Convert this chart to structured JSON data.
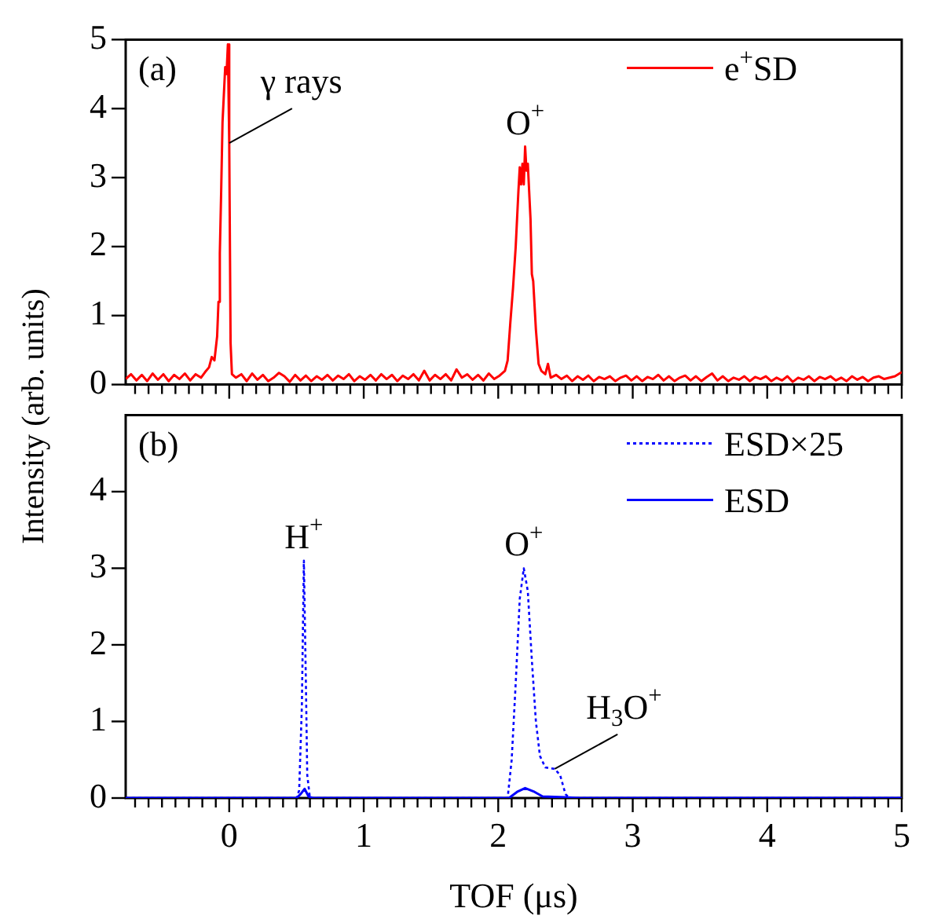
{
  "chart_data": [
    {
      "type": "line",
      "ylabel": "Intensity (arb. units)",
      "xlim": [
        -0.77,
        5
      ],
      "ylim": [
        0,
        5
      ],
      "yticks": [
        0,
        1,
        2,
        3,
        4,
        5
      ],
      "xticks": [
        {
          "value": -0.7,
          "label": null
        },
        {
          "value": -0.6,
          "label": null
        },
        {
          "value": -0.5,
          "label": null
        },
        {
          "value": -0.4,
          "label": null
        },
        {
          "value": -0.3,
          "label": null
        },
        {
          "value": -0.2,
          "label": null
        },
        {
          "value": -0.1,
          "label": null
        },
        0,
        {
          "value": 0.1,
          "label": null
        },
        {
          "value": 0.2,
          "label": null
        },
        {
          "value": 0.3,
          "label": null
        },
        {
          "value": 0.4,
          "label": null
        },
        {
          "value": 0.5,
          "label": null
        },
        {
          "value": 0.6,
          "label": null
        },
        {
          "value": 0.7,
          "label": null
        },
        {
          "value": 0.8,
          "label": null
        },
        {
          "value": 0.9,
          "label": null
        },
        1,
        {
          "value": 1.1,
          "label": null
        },
        {
          "value": 1.2,
          "label": null
        },
        {
          "value": 1.3,
          "label": null
        },
        {
          "value": 1.4,
          "label": null
        },
        {
          "value": 1.5,
          "label": null
        },
        {
          "value": 1.6,
          "label": null
        },
        {
          "value": 1.7,
          "label": null
        },
        {
          "value": 1.8,
          "label": null
        },
        {
          "value": 1.9,
          "label": null
        },
        2,
        {
          "value": 2.1,
          "label": null
        },
        {
          "value": 2.2,
          "label": null
        },
        {
          "value": 2.3,
          "label": null
        },
        {
          "value": 2.4,
          "label": null
        },
        {
          "value": 2.5,
          "label": null
        },
        {
          "value": 2.6,
          "label": null
        },
        {
          "value": 2.7,
          "label": null
        },
        {
          "value": 2.8,
          "label": null
        },
        {
          "value": 2.9,
          "label": null
        },
        3,
        {
          "value": 3.1,
          "label": null
        },
        {
          "value": 3.2,
          "label": null
        },
        {
          "value": 3.3,
          "label": null
        },
        {
          "value": 3.4,
          "label": null
        },
        {
          "value": 3.5,
          "label": null
        },
        {
          "value": 3.6,
          "label": null
        },
        {
          "value": 3.7,
          "label": null
        },
        {
          "value": 3.8,
          "label": null
        },
        {
          "value": 3.9,
          "label": null
        },
        4,
        {
          "value": 4.1,
          "label": null
        },
        {
          "value": 4.2,
          "label": null
        },
        {
          "value": 4.3,
          "label": null
        },
        {
          "value": 4.4,
          "label": null
        },
        {
          "value": 4.5,
          "label": null
        },
        {
          "value": 4.6,
          "label": null
        },
        {
          "value": 4.7,
          "label": null
        },
        {
          "value": 4.8,
          "label": null
        },
        {
          "value": 4.9,
          "label": null
        },
        5
      ],
      "tick_labels": "y",
      "legend": "top right",
      "annotations": [
        "(a)",
        {
          "text": "γ rays",
          "x": 0,
          "y": 3.5
        },
        {
          "text": "O$^{+}$",
          "x": 2.2,
          "y": 3.45
        }
      ],
      "series": [
        {
          "name": "e$^{+}$SD",
          "color": "#ff0000",
          "line_style": "solid",
          "x": [
            -0.77,
            -0.73,
            -0.69,
            -0.65,
            -0.61,
            -0.57,
            -0.53,
            -0.49,
            -0.45,
            -0.41,
            -0.37,
            -0.33,
            -0.29,
            -0.25,
            -0.21,
            -0.18,
            -0.15,
            -0.13,
            -0.11,
            -0.09,
            -0.08,
            -0.07,
            -0.06,
            -0.05,
            -0.04,
            -0.03,
            -0.02,
            -0.01,
            0,
            0.01,
            0.02,
            0.05,
            0.09,
            0.13,
            0.17,
            0.21,
            0.25,
            0.29,
            0.33,
            0.37,
            0.41,
            0.45,
            0.49,
            0.53,
            0.57,
            0.61,
            0.65,
            0.69,
            0.73,
            0.77,
            0.81,
            0.85,
            0.89,
            0.93,
            0.97,
            1.01,
            1.05,
            1.09,
            1.13,
            1.17,
            1.21,
            1.25,
            1.29,
            1.33,
            1.37,
            1.41,
            1.45,
            1.49,
            1.53,
            1.57,
            1.61,
            1.65,
            1.69,
            1.73,
            1.77,
            1.81,
            1.85,
            1.89,
            1.93,
            1.97,
            2.01,
            2.05,
            2.07,
            2.09,
            2.11,
            2.13,
            2.15,
            2.16,
            2.17,
            2.18,
            2.19,
            2.2,
            2.21,
            2.22,
            2.23,
            2.24,
            2.25,
            2.26,
            2.28,
            2.3,
            2.32,
            2.35,
            2.37,
            2.39,
            2.43,
            2.47,
            2.51,
            2.55,
            2.59,
            2.63,
            2.67,
            2.71,
            2.75,
            2.79,
            2.83,
            2.87,
            2.91,
            2.95,
            2.99,
            3.03,
            3.07,
            3.11,
            3.15,
            3.19,
            3.23,
            3.27,
            3.31,
            3.35,
            3.39,
            3.43,
            3.47,
            3.51,
            3.55,
            3.59,
            3.63,
            3.67,
            3.71,
            3.75,
            3.79,
            3.83,
            3.87,
            3.91,
            3.95,
            3.99,
            4.03,
            4.07,
            4.11,
            4.15,
            4.19,
            4.23,
            4.27,
            4.31,
            4.35,
            4.39,
            4.43,
            4.47,
            4.51,
            4.55,
            4.59,
            4.63,
            4.67,
            4.71,
            4.75,
            4.79,
            4.83,
            4.87,
            4.91,
            4.95,
            5
          ],
          "values": [
            0.08,
            0.15,
            0.06,
            0.14,
            0.05,
            0.16,
            0.07,
            0.15,
            0.05,
            0.14,
            0.08,
            0.16,
            0.06,
            0.15,
            0.1,
            0.18,
            0.25,
            0.4,
            0.35,
            0.7,
            1.2,
            1.9,
            2.8,
            3.8,
            4.2,
            4.6,
            4.5,
            4.93,
            3.5,
            0.6,
            0.15,
            0.1,
            0.15,
            0.05,
            0.16,
            0.07,
            0.14,
            0.05,
            0.1,
            0.17,
            0.12,
            0.04,
            0.14,
            0.06,
            0.13,
            0.05,
            0.12,
            0.07,
            0.14,
            0.06,
            0.13,
            0.08,
            0.15,
            0.05,
            0.12,
            0.07,
            0.14,
            0.06,
            0.15,
            0.08,
            0.14,
            0.05,
            0.13,
            0.08,
            0.15,
            0.06,
            0.2,
            0.06,
            0.14,
            0.08,
            0.15,
            0.06,
            0.22,
            0.1,
            0.15,
            0.07,
            0.14,
            0.06,
            0.16,
            0.08,
            0.13,
            0.2,
            0.35,
            0.9,
            1.4,
            2,
            2.8,
            3.15,
            2.9,
            3.2,
            2.9,
            3.45,
            3.1,
            3.2,
            2.8,
            2.4,
            1.6,
            1.5,
            0.8,
            0.3,
            0.2,
            0.15,
            0.3,
            0.1,
            0.14,
            0.08,
            0.13,
            0.05,
            0.12,
            0.07,
            0.13,
            0.05,
            0.11,
            0.08,
            0.12,
            0.05,
            0.1,
            0.13,
            0.06,
            0.12,
            0.05,
            0.11,
            0.08,
            0.14,
            0.06,
            0.12,
            0.05,
            0.1,
            0.13,
            0.06,
            0.12,
            0.05,
            0.11,
            0.16,
            0.06,
            0.12,
            0.05,
            0.1,
            0.07,
            0.12,
            0.05,
            0.11,
            0.08,
            0.12,
            0.05,
            0.1,
            0.06,
            0.12,
            0.04,
            0.1,
            0.07,
            0.12,
            0.05,
            0.11,
            0.08,
            0.12,
            0.06,
            0.1,
            0.05,
            0.12,
            0.07,
            0.11,
            0.05,
            0.1,
            0.12,
            0.08,
            0.1,
            0.12,
            0.18
          ]
        }
      ]
    },
    {
      "type": "line",
      "xlabel": "TOF (μs)",
      "xlim": [
        -0.77,
        5
      ],
      "ylim": [
        0,
        5
      ],
      "yticks": [
        0,
        1,
        2,
        3,
        4
      ],
      "xticks": [
        {
          "value": -0.7,
          "label": null
        },
        {
          "value": -0.6,
          "label": null
        },
        {
          "value": -0.5,
          "label": null
        },
        {
          "value": -0.4,
          "label": null
        },
        {
          "value": -0.3,
          "label": null
        },
        {
          "value": -0.2,
          "label": null
        },
        {
          "value": -0.1,
          "label": null
        },
        0,
        {
          "value": 0.1,
          "label": null
        },
        {
          "value": 0.2,
          "label": null
        },
        {
          "value": 0.3,
          "label": null
        },
        {
          "value": 0.4,
          "label": null
        },
        {
          "value": 0.5,
          "label": null
        },
        {
          "value": 0.6,
          "label": null
        },
        {
          "value": 0.7,
          "label": null
        },
        {
          "value": 0.8,
          "label": null
        },
        {
          "value": 0.9,
          "label": null
        },
        1,
        {
          "value": 1.1,
          "label": null
        },
        {
          "value": 1.2,
          "label": null
        },
        {
          "value": 1.3,
          "label": null
        },
        {
          "value": 1.4,
          "label": null
        },
        {
          "value": 1.5,
          "label": null
        },
        {
          "value": 1.6,
          "label": null
        },
        {
          "value": 1.7,
          "label": null
        },
        {
          "value": 1.8,
          "label": null
        },
        {
          "value": 1.9,
          "label": null
        },
        2,
        {
          "value": 2.1,
          "label": null
        },
        {
          "value": 2.2,
          "label": null
        },
        {
          "value": 2.3,
          "label": null
        },
        {
          "value": 2.4,
          "label": null
        },
        {
          "value": 2.5,
          "label": null
        },
        {
          "value": 2.6,
          "label": null
        },
        {
          "value": 2.7,
          "label": null
        },
        {
          "value": 2.8,
          "label": null
        },
        {
          "value": 2.9,
          "label": null
        },
        3,
        {
          "value": 3.1,
          "label": null
        },
        {
          "value": 3.2,
          "label": null
        },
        {
          "value": 3.3,
          "label": null
        },
        {
          "value": 3.4,
          "label": null
        },
        {
          "value": 3.5,
          "label": null
        },
        {
          "value": 3.6,
          "label": null
        },
        {
          "value": 3.7,
          "label": null
        },
        {
          "value": 3.8,
          "label": null
        },
        {
          "value": 3.9,
          "label": null
        },
        4,
        {
          "value": 4.1,
          "label": null
        },
        {
          "value": 4.2,
          "label": null
        },
        {
          "value": 4.3,
          "label": null
        },
        {
          "value": 4.4,
          "label": null
        },
        {
          "value": 4.5,
          "label": null
        },
        {
          "value": 4.6,
          "label": null
        },
        {
          "value": 4.7,
          "label": null
        },
        {
          "value": 4.8,
          "label": null
        },
        {
          "value": 4.9,
          "label": null
        },
        5
      ],
      "legend": "top right",
      "annotations": [
        "(b)",
        {
          "text": "H$^{+}$",
          "x": 0.555,
          "y": 3.1
        },
        {
          "text": "O$^{+}$",
          "x": 2.19,
          "y": 3
        },
        {
          "text": "H$_{3}$O$^{+}$",
          "x": 2.42,
          "y": 0.38
        }
      ],
      "series": [
        {
          "name": "ESD×25",
          "color": "#0000ff",
          "line_style": "dotted",
          "x": [
            -0.77,
            0.5,
            0.52,
            0.54,
            0.555,
            0.57,
            0.58,
            0.6,
            2.07,
            2.1,
            2.13,
            2.16,
            2.19,
            2.22,
            2.25,
            2.28,
            2.31,
            2.35,
            2.42,
            2.46,
            2.5,
            2.53,
            5
          ],
          "values": [
            0,
            0,
            0.1,
            1.2,
            3.1,
            1.5,
            0.3,
            0,
            0,
            0.5,
            1.5,
            2.6,
            3,
            2.7,
            1.8,
            1,
            0.55,
            0.4,
            0.38,
            0.3,
            0.05,
            0,
            0
          ]
        },
        {
          "name": "ESD",
          "color": "#0000ff",
          "line_style": "solid",
          "x": [
            -0.77,
            0.5,
            0.53,
            0.56,
            0.59,
            0.62,
            2.08,
            2.14,
            2.2,
            2.27,
            2.33,
            2.5,
            2.6,
            5
          ],
          "values": [
            0,
            0,
            0.05,
            0.12,
            0.02,
            0,
            0,
            0.08,
            0.13,
            0.08,
            0.02,
            0.01,
            0,
            0
          ]
        }
      ]
    }
  ]
}
